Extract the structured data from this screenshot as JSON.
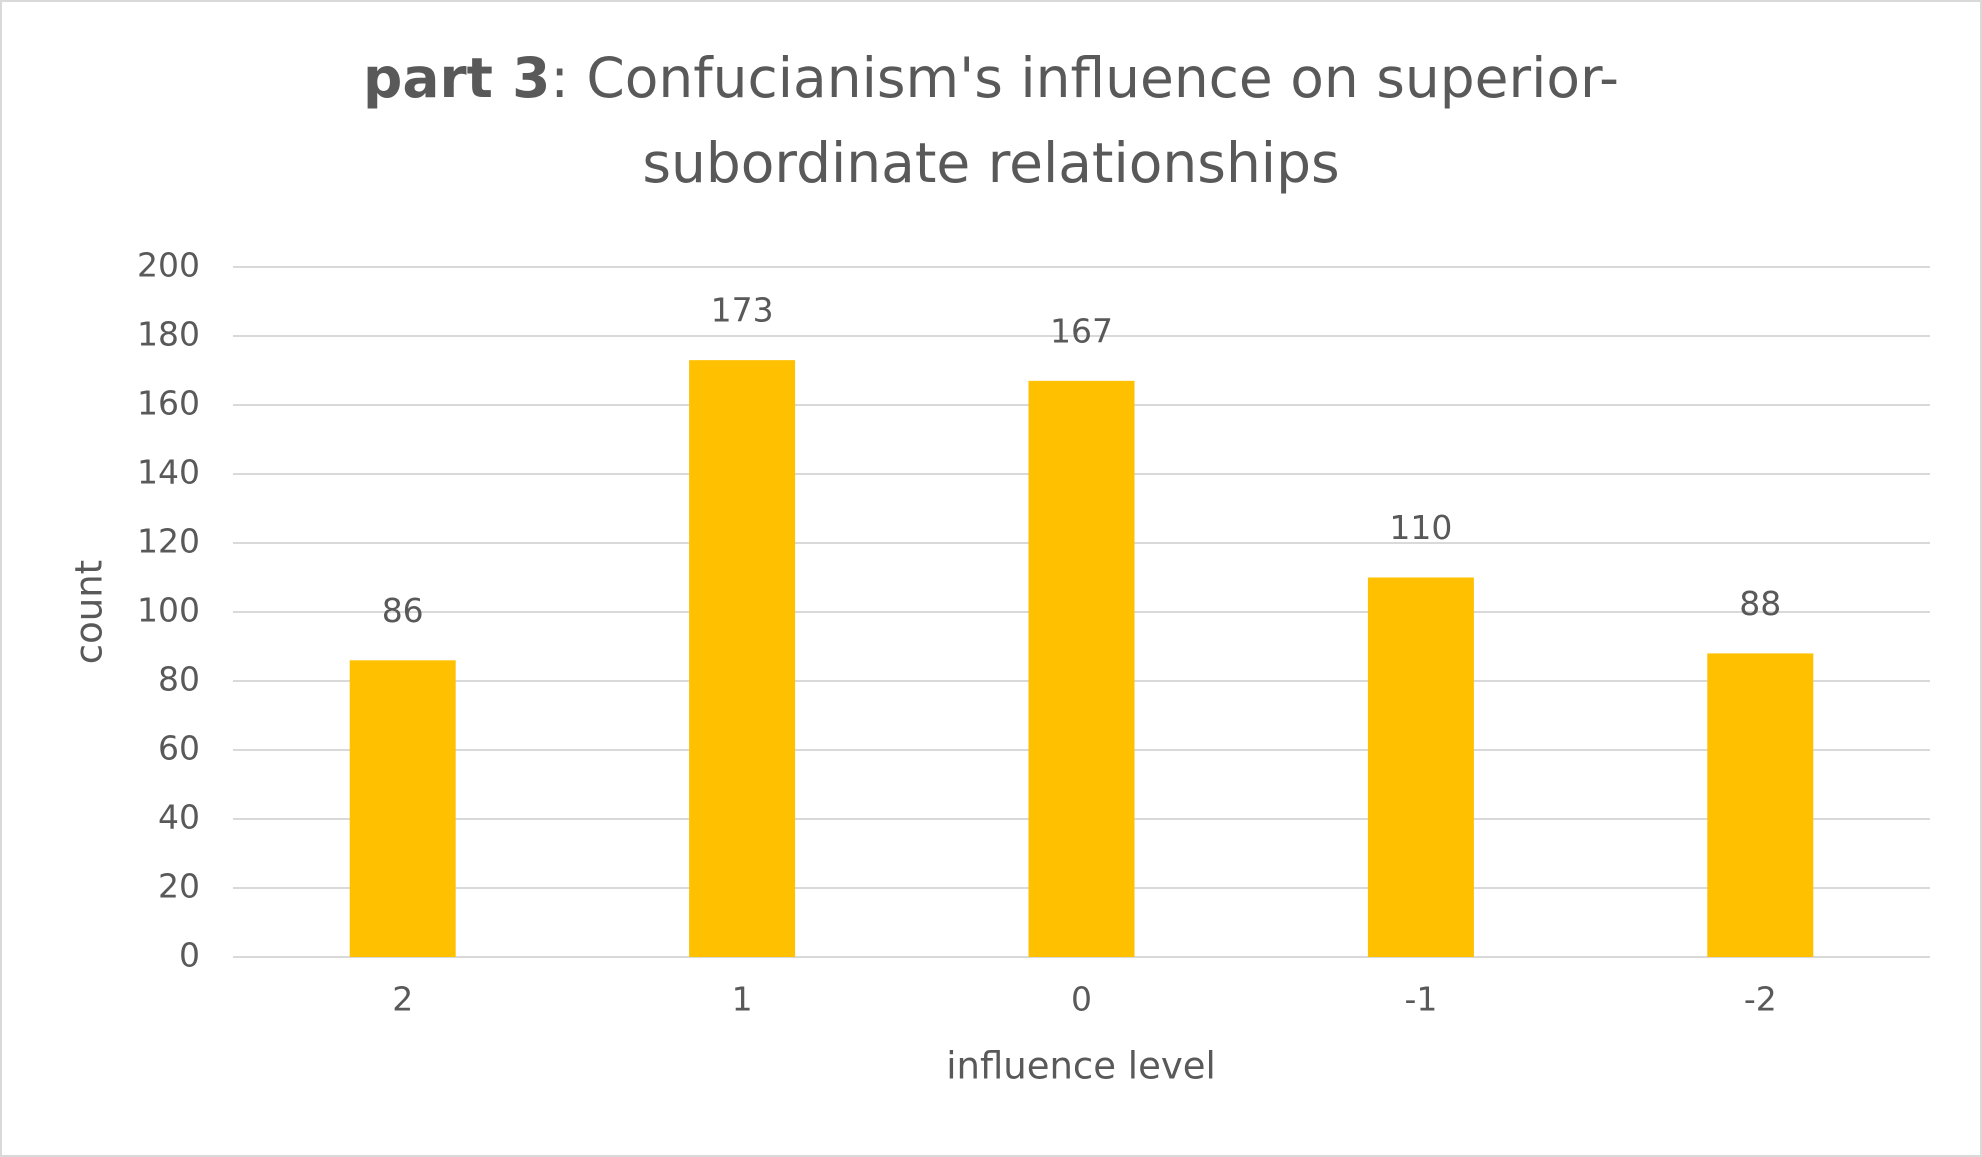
{
  "chart_data": {
    "type": "bar",
    "title": [
      "part 3",
      ": Confucianism's influence on superior-",
      "subordinate relationships"
    ],
    "x_label": "influence level",
    "y_label": "count",
    "categories": [
      "2",
      "1",
      "0",
      "-1",
      "-2"
    ],
    "values": [
      86,
      173,
      167,
      110,
      88
    ],
    "color": "#ffc000",
    "ylim": [
      0,
      200
    ],
    "yticks": [
      0,
      20,
      40,
      60,
      80,
      100,
      120,
      140,
      160,
      180,
      200
    ],
    "grid": true
  }
}
